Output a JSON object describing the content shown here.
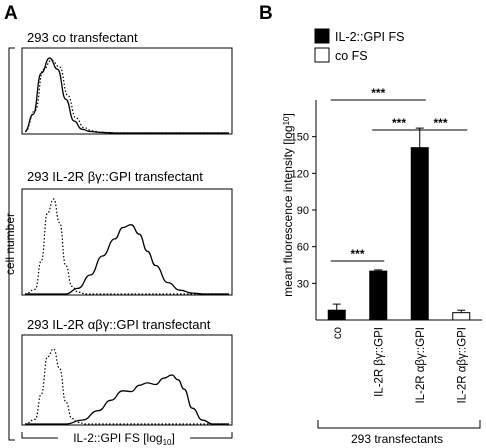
{
  "panel_a": {
    "letter": "A",
    "ylabel": "cell number",
    "xlabel_base": "IL-2::GPI FS [log",
    "xlabel_sub": "10",
    "xlabel_end": "]",
    "histograms": [
      {
        "title": "293 co transfectant"
      },
      {
        "title": "293 IL-2R βγ::GPI transfectant"
      },
      {
        "title": "293 IL-2R αβγ::GPI transfectant"
      }
    ]
  },
  "panel_b": {
    "letter": "B",
    "group_label": "293 transfectants"
  },
  "colors": {
    "filled": "#000000",
    "open": "#ffffff",
    "stroke": "#000000"
  },
  "chart_data": [
    {
      "type": "area",
      "title": "293 co transfectant",
      "x_scale": "log",
      "series": [
        {
          "style": "solid",
          "x": [
            0.0,
            0.04,
            0.08,
            0.12,
            0.16,
            0.2,
            0.24,
            0.28,
            0.32,
            0.36,
            0.4,
            0.44,
            1.0
          ],
          "y": [
            0.02,
            0.25,
            0.8,
            1.0,
            0.85,
            0.45,
            0.16,
            0.05,
            0.02,
            0.01,
            0.005,
            0.0,
            0.0
          ]
        },
        {
          "style": "dotted",
          "x": [
            0.0,
            0.05,
            0.09,
            0.13,
            0.17,
            0.21,
            0.25,
            0.29,
            0.33,
            0.37,
            0.41,
            0.45,
            1.0
          ],
          "y": [
            0.02,
            0.3,
            0.85,
            0.97,
            0.88,
            0.5,
            0.2,
            0.07,
            0.03,
            0.01,
            0.005,
            0.0,
            0.0
          ]
        }
      ]
    },
    {
      "type": "area",
      "title": "293 IL-2R βγ::GPI transfectant",
      "x_scale": "log",
      "series": [
        {
          "style": "dotted",
          "x": [
            0.0,
            0.05,
            0.08,
            0.11,
            0.14,
            0.17,
            0.2,
            0.23,
            0.26,
            0.3,
            1.0
          ],
          "y": [
            0.0,
            0.05,
            0.35,
            0.85,
            1.0,
            0.75,
            0.3,
            0.08,
            0.02,
            0.0,
            0.0
          ]
        },
        {
          "style": "solid",
          "x": [
            0.0,
            0.2,
            0.26,
            0.32,
            0.38,
            0.44,
            0.48,
            0.52,
            0.56,
            0.6,
            0.64,
            0.7,
            0.76,
            0.82,
            0.88,
            1.0
          ],
          "y": [
            0.0,
            0.0,
            0.06,
            0.2,
            0.4,
            0.58,
            0.7,
            0.73,
            0.63,
            0.45,
            0.3,
            0.12,
            0.04,
            0.01,
            0.0,
            0.0
          ]
        }
      ]
    },
    {
      "type": "area",
      "title": "293 IL-2R αβγ::GPI transfectant",
      "x_scale": "log",
      "series": [
        {
          "style": "dotted",
          "x": [
            0.0,
            0.05,
            0.08,
            0.11,
            0.14,
            0.17,
            0.2,
            0.23,
            0.26,
            0.3,
            1.0
          ],
          "y": [
            0.0,
            0.06,
            0.38,
            0.85,
            0.95,
            0.7,
            0.28,
            0.07,
            0.02,
            0.0,
            0.0
          ]
        },
        {
          "style": "solid",
          "x": [
            0.0,
            0.2,
            0.28,
            0.36,
            0.42,
            0.48,
            0.52,
            0.56,
            0.6,
            0.64,
            0.68,
            0.72,
            0.75,
            0.78,
            0.82,
            0.87,
            0.92,
            1.0
          ],
          "y": [
            0.0,
            0.0,
            0.05,
            0.17,
            0.3,
            0.42,
            0.41,
            0.49,
            0.52,
            0.5,
            0.58,
            0.62,
            0.56,
            0.44,
            0.2,
            0.05,
            0.0,
            0.0
          ]
        }
      ]
    },
    {
      "type": "bar",
      "ylabel_base": "mean fluorescence intensity [log",
      "ylabel_sub": "10",
      "ylabel_end": "]",
      "ylim": [
        0,
        180
      ],
      "yticks": [
        30,
        60,
        90,
        120,
        150
      ],
      "categories": [
        "co",
        "IL-2R βγ::GPI",
        "IL-2R αβγ::GPI",
        "IL-2R αβγ::GPI"
      ],
      "values": [
        8,
        40,
        141,
        6
      ],
      "errors": [
        5,
        1,
        16,
        2
      ],
      "fill": [
        "filled",
        "filled",
        "filled",
        "open"
      ],
      "legend": {
        "placement": "top-left",
        "entries": [
          {
            "label": "IL-2::GPI FS",
            "fill": "filled"
          },
          {
            "label": "co FS",
            "fill": "open"
          }
        ]
      },
      "significance": [
        {
          "from": 0,
          "to": 1,
          "label": "***"
        },
        {
          "from": 0,
          "to": 2,
          "label": "***"
        },
        {
          "from": 1,
          "to": 2,
          "label": "***"
        },
        {
          "from": 2,
          "to": 3,
          "label": "***"
        }
      ]
    }
  ]
}
